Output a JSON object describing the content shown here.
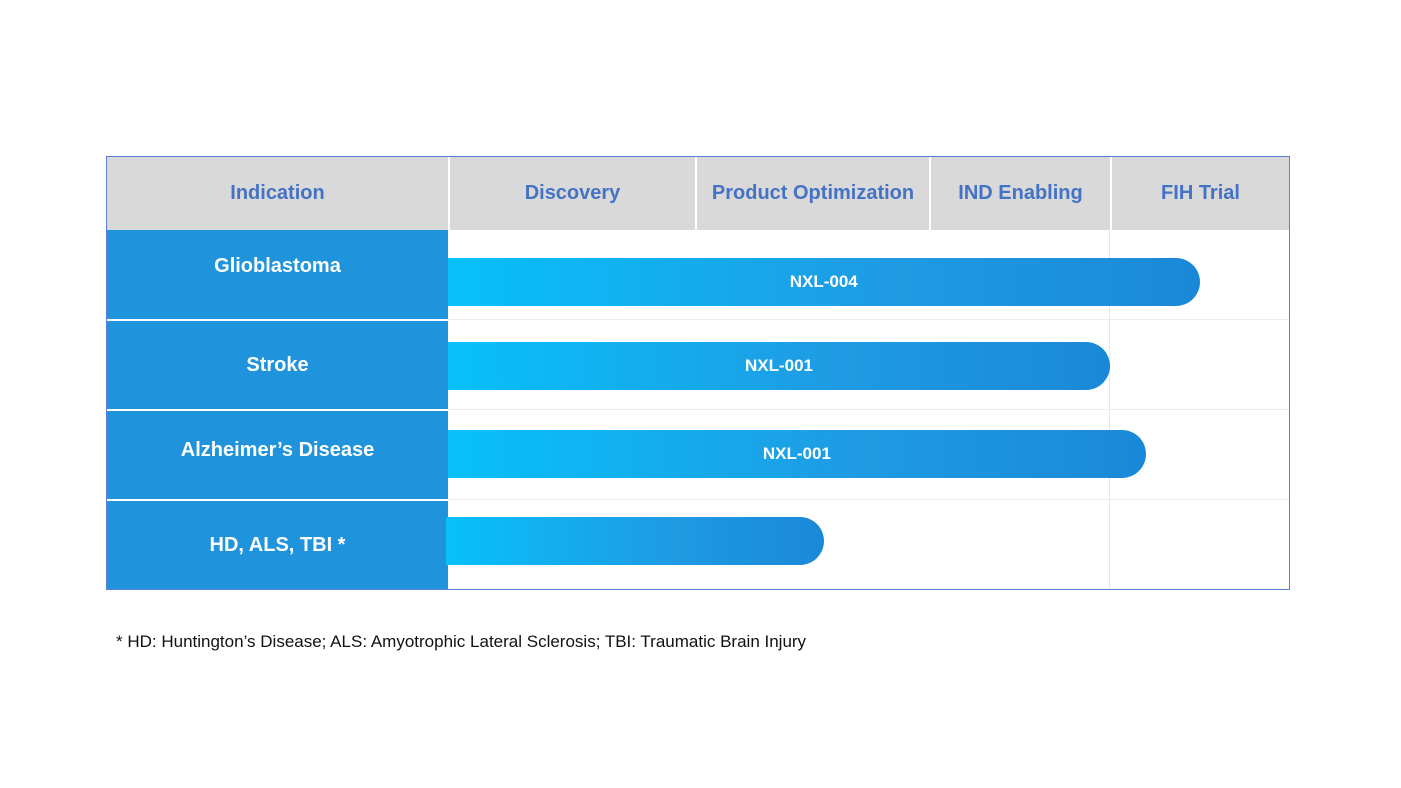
{
  "chart_data": {
    "type": "bar",
    "orientation": "horizontal",
    "stages": [
      "Discovery",
      "Product Optimization",
      "IND Enabling",
      "FIH Trial"
    ],
    "header": {
      "indication": "Indication",
      "columns": [
        "Discovery",
        "Product Optimization",
        "IND Enabling",
        "FIH Trial"
      ]
    },
    "rows": [
      {
        "indication": "Glioblastoma",
        "program": "NXL-004",
        "progress_stages": 3.5
      },
      {
        "indication": "Stroke",
        "program": "NXL-001",
        "progress_stages": 3.0
      },
      {
        "indication": "Alzheimer’s Disease",
        "program": "NXL-001",
        "progress_stages": 3.2
      },
      {
        "indication": "HD, ALS, TBI *",
        "program": "",
        "progress_stages": 1.55
      }
    ],
    "colors": {
      "label_bg": "#1f93db",
      "bar_start": "#08c0fb",
      "bar_end": "#1a88d8",
      "header_text": "#4472c4",
      "header_bg": "#d9d9d9"
    }
  },
  "footnote": "* HD: Huntington’s Disease; ALS: Amyotrophic Lateral Sclerosis; TBI: Traumatic Brain Injury"
}
